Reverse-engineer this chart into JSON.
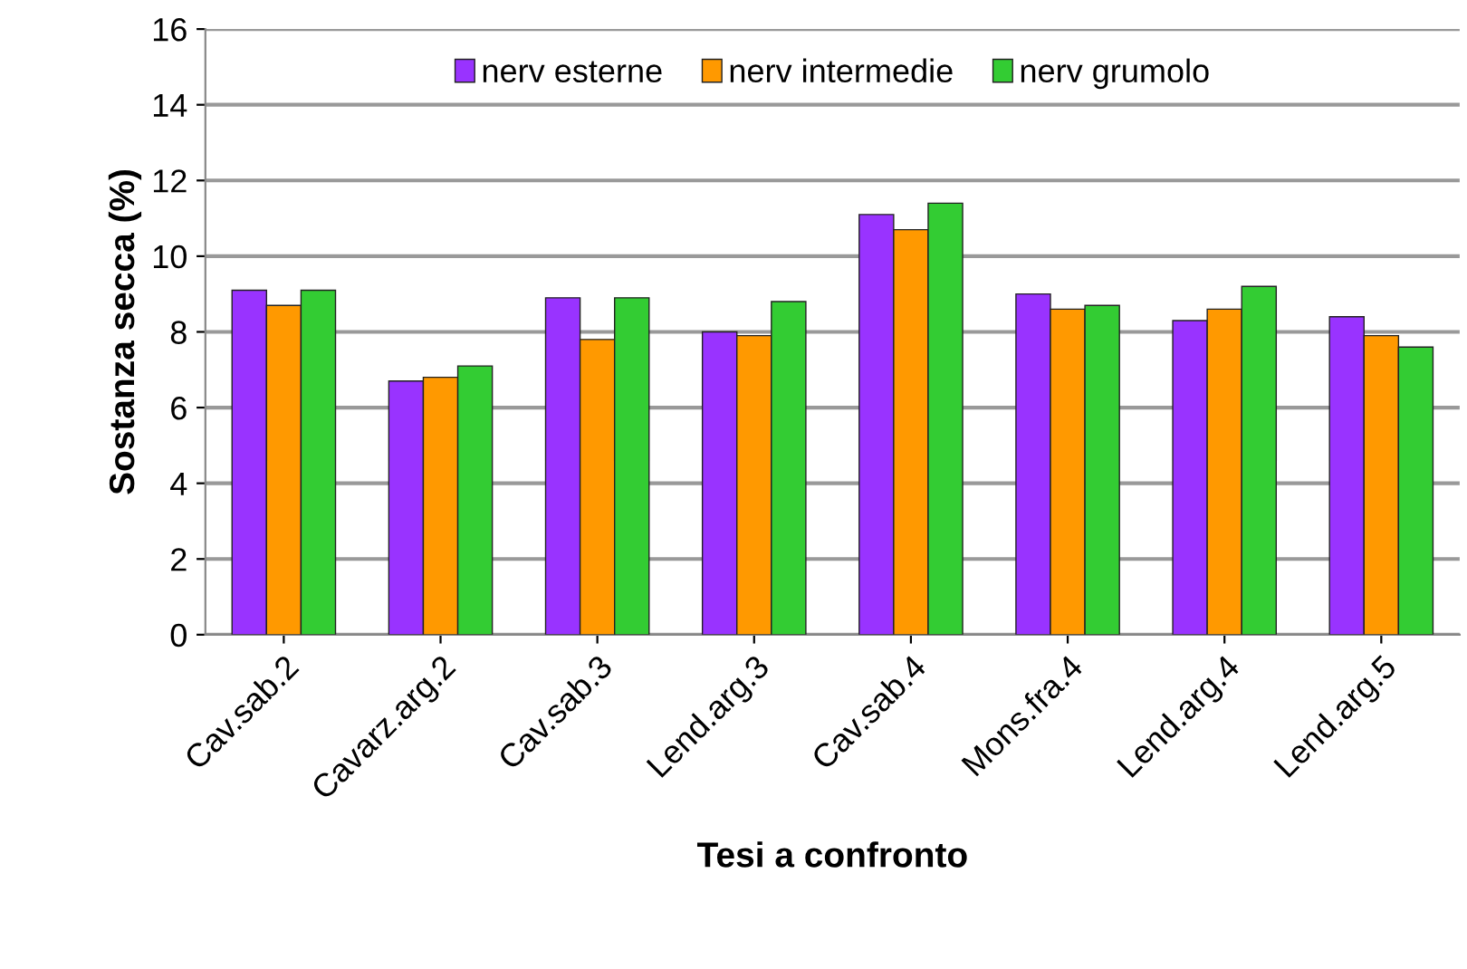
{
  "chart_data": {
    "type": "bar",
    "xlabel": "Tesi a confronto",
    "ylabel": "Sostanza secca (%)",
    "categories": [
      "Cav.sab.2",
      "Cavarz.arg.2",
      "Cav.sab.3",
      "Lend.arg.3",
      "Cav.sab.4",
      "Mons.fra.4",
      "Lend.arg.4",
      "Lend.arg.5"
    ],
    "series": [
      {
        "name": "nerv esterne",
        "color": "#9933ff",
        "values": [
          9.1,
          6.7,
          8.9,
          8.0,
          11.1,
          9.0,
          8.3,
          8.4
        ]
      },
      {
        "name": "nerv intermedie",
        "color": "#ff9900",
        "values": [
          8.7,
          6.8,
          7.8,
          7.9,
          10.7,
          8.6,
          8.6,
          7.9
        ]
      },
      {
        "name": "nerv grumolo",
        "color": "#33cc33",
        "values": [
          9.1,
          7.1,
          8.9,
          8.8,
          11.4,
          8.7,
          9.2,
          7.6
        ]
      }
    ],
    "ylim": [
      0,
      16
    ],
    "yticks": [
      0,
      2,
      4,
      6,
      8,
      10,
      12,
      14,
      16
    ],
    "grid": "y",
    "legend": "top"
  }
}
